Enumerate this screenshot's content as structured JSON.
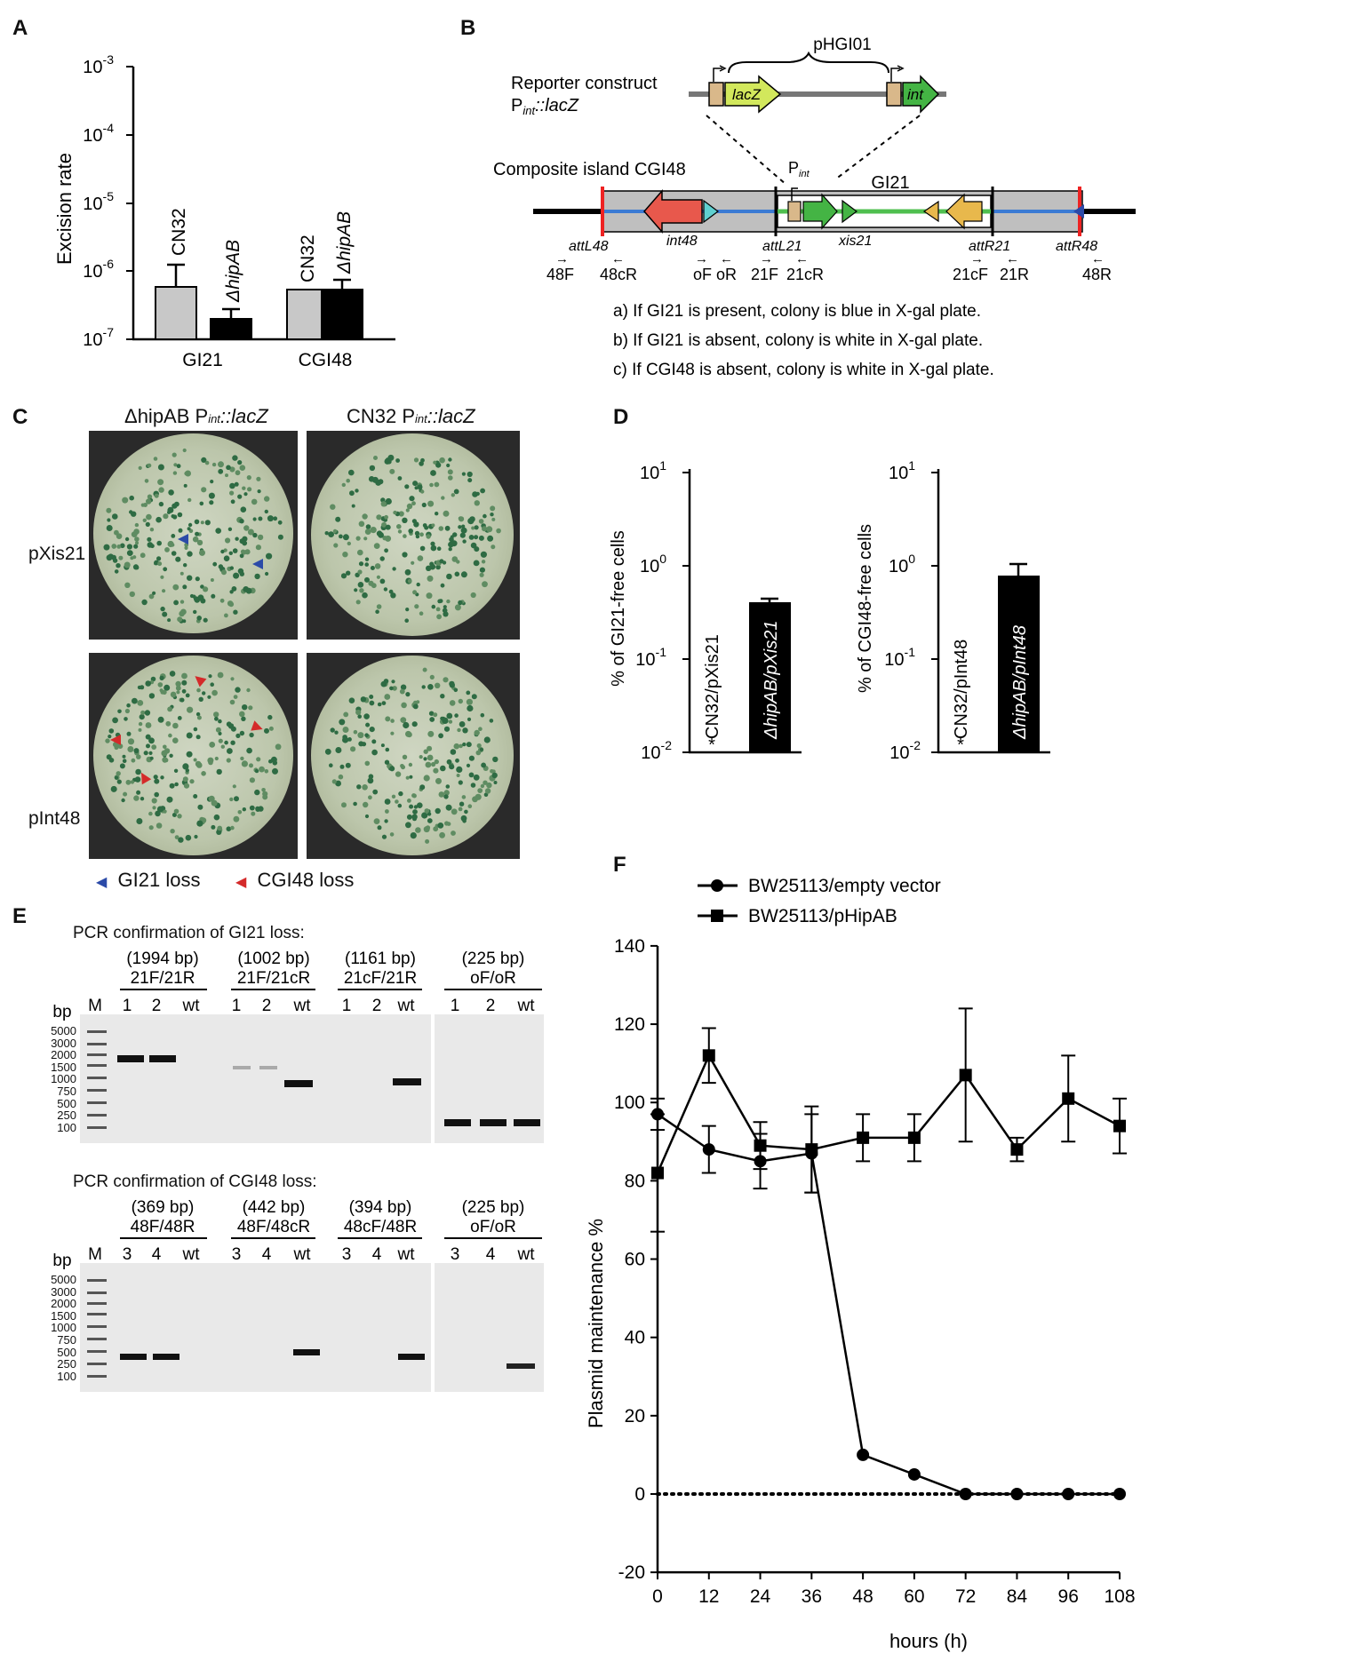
{
  "panels": {
    "a": "A",
    "b": "B",
    "c": "C",
    "d": "D",
    "e": "E",
    "f": "F"
  },
  "panelA": {
    "ylabel": "Excision rate",
    "ticks": [
      "10",
      "10",
      "10",
      "10",
      "10"
    ],
    "tick_exps": [
      "-3",
      "-4",
      "-5",
      "-6",
      "-7"
    ],
    "groups": [
      "GI21",
      "CGI48"
    ],
    "bar_labels": [
      "CN32",
      "ΔhipAB",
      "CN32",
      "ΔhipAB"
    ]
  },
  "panelB": {
    "pHGI01": "pHGI01",
    "reporter_title": "Reporter construct",
    "reporter_sub": "P",
    "reporter_sub2": "int",
    "reporter_sub3": "::lacZ",
    "lacZ": "lacZ",
    "int": "int",
    "composite": "Composite island CGI48",
    "pint": "P",
    "pint_sub": "int",
    "gi21": "GI21",
    "site_labels": [
      "attL48",
      "int48",
      "attL21",
      "xis21",
      "attR21",
      "attR48"
    ],
    "primers": [
      "48F",
      "48cR",
      "oF oR",
      "21F",
      "21cR",
      "21cF",
      "21R",
      "48R"
    ],
    "notes": [
      "a) If GI21 is present, colony is blue in X-gal plate.",
      "b) If GI21 is absent, colony is white in X-gal plate.",
      "c) If CGI48 is absent, colony is white in X-gal plate."
    ]
  },
  "panelC": {
    "col1": "ΔhipAB P",
    "col1b": "int",
    "col1c": "::lacZ",
    "col2": "CN32 P",
    "col2b": "int",
    "col2c": "::lacZ",
    "row1": "pXis21",
    "row2": "pInt48",
    "legend1": "GI21 loss",
    "legend2": "CGI48 loss",
    "legend1_color": "#2b4aa8",
    "legend2_color": "#d42a2a"
  },
  "panelD": {
    "left_ylabel": "% of GI21-free cells",
    "right_ylabel": "% of CGI48-free cells",
    "ticks": [
      "10",
      "10",
      "10",
      "10"
    ],
    "tick_exps": [
      "1",
      "0",
      "-1",
      "-2"
    ],
    "left_bars": [
      "CN32/pXis21",
      "ΔhipAB/pXis21"
    ],
    "right_bars": [
      "CN32/pInt48",
      "ΔhipAB/pInt48"
    ],
    "star": "*"
  },
  "panelE": {
    "top_title": "PCR confirmation of GI21 loss:",
    "bottom_title": "PCR confirmation of CGI48 loss:",
    "top_products": [
      [
        "(1994 bp)",
        "21F/21R"
      ],
      [
        "(1002 bp)",
        "21F/21cR"
      ],
      [
        "(1161 bp)",
        "21cF/21R"
      ],
      [
        "(225 bp)",
        "oF/oR"
      ]
    ],
    "bottom_products": [
      [
        "(369 bp)",
        "48F/48R"
      ],
      [
        "(442 bp)",
        "48F/48cR"
      ],
      [
        "(394 bp)",
        "48cF/48R"
      ],
      [
        "(225 bp)",
        "oF/oR"
      ]
    ],
    "bp": "bp",
    "M": "M",
    "top_lanes": [
      "1",
      "2",
      "wt",
      "1",
      "2",
      "wt",
      "1",
      "2",
      "wt",
      "1",
      "2",
      "wt"
    ],
    "bottom_lanes": [
      "3",
      "4",
      "wt",
      "3",
      "4",
      "wt",
      "3",
      "4",
      "wt",
      "3",
      "4",
      "wt"
    ],
    "ladder": [
      "5000",
      "3000",
      "2000",
      "1500",
      "1000",
      "750",
      "500",
      "250",
      "100"
    ]
  },
  "chart_data": {
    "type": "line",
    "xlabel": "hours (h)",
    "ylabel": "Plasmid maintenance %",
    "x": [
      0,
      12,
      24,
      36,
      48,
      60,
      72,
      84,
      96,
      108
    ],
    "xlim": [
      0,
      108
    ],
    "ylim": [
      -20,
      140
    ],
    "yticks": [
      -20,
      0,
      20,
      40,
      60,
      80,
      100,
      120,
      140
    ],
    "legend_position": "top",
    "series": [
      {
        "name": "BW25113/empty vector",
        "marker": "circle",
        "values": [
          97,
          88,
          85,
          87,
          10,
          5,
          0,
          0,
          0,
          0
        ],
        "errors": [
          4,
          6,
          7,
          10,
          0,
          0,
          0,
          0,
          0,
          0
        ]
      },
      {
        "name": "BW25113/pHipAB",
        "marker": "square",
        "values": [
          82,
          112,
          89,
          88,
          91,
          91,
          107,
          88,
          101,
          94
        ],
        "errors": [
          15,
          7,
          6,
          11,
          6,
          6,
          17,
          3,
          11,
          7
        ]
      }
    ],
    "reference_line": {
      "y": 0,
      "style": "dotted"
    }
  }
}
